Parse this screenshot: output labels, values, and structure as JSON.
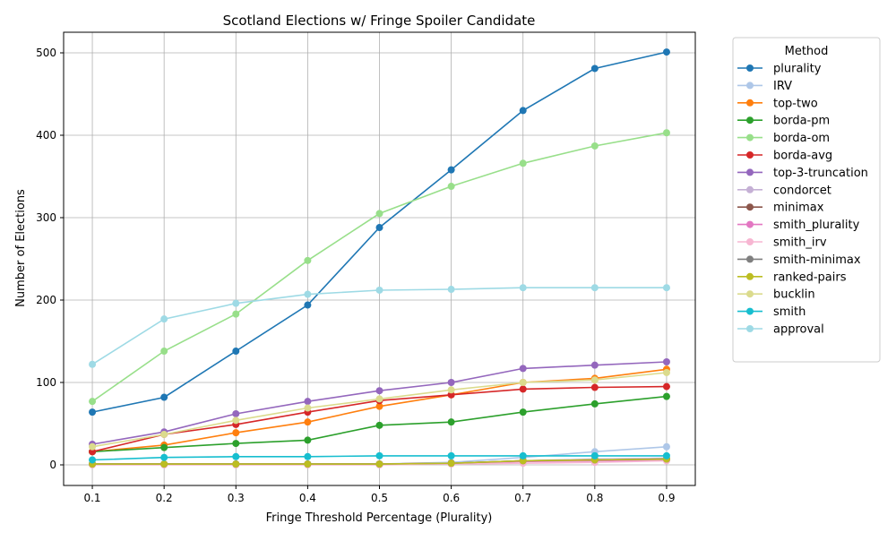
{
  "chart_data": {
    "type": "line",
    "title": "Scotland Elections w/ Fringe Spoiler Candidate",
    "xlabel": "Fringe Threshold Percentage (Plurality)",
    "ylabel": "Number of Elections",
    "x": [
      0.1,
      0.2,
      0.3,
      0.4,
      0.5,
      0.6,
      0.7,
      0.8,
      0.9
    ],
    "x_tick_labels": [
      "0.1",
      "0.2",
      "0.3",
      "0.4",
      "0.5",
      "0.6",
      "0.7",
      "0.8",
      "0.9"
    ],
    "xlim": [
      0.06,
      0.94
    ],
    "ylim": [
      -25,
      525
    ],
    "y_ticks": [
      0,
      100,
      200,
      300,
      400,
      500
    ],
    "y_tick_labels": [
      "0",
      "100",
      "200",
      "300",
      "400",
      "500"
    ],
    "grid": true,
    "legend_title": "Method",
    "legend_position": "outside-right-top",
    "series": [
      {
        "name": "plurality",
        "color": "#1f77b4",
        "values": [
          64,
          82,
          138,
          194,
          288,
          358,
          430,
          481,
          501
        ]
      },
      {
        "name": "IRV",
        "color": "#aec7e8",
        "values": [
          1,
          1,
          1,
          1,
          1,
          3,
          9,
          16,
          22
        ]
      },
      {
        "name": "top-two",
        "color": "#ff7f0e",
        "values": [
          16,
          24,
          39,
          52,
          71,
          85,
          100,
          105,
          116
        ]
      },
      {
        "name": "borda-pm",
        "color": "#2ca02c",
        "values": [
          16,
          21,
          26,
          30,
          48,
          52,
          64,
          74,
          83
        ]
      },
      {
        "name": "borda-om",
        "color": "#98df8a",
        "values": [
          77,
          138,
          183,
          248,
          305,
          338,
          366,
          387,
          403
        ]
      },
      {
        "name": "borda-avg",
        "color": "#d62728",
        "values": [
          16,
          37,
          49,
          64,
          78,
          85,
          92,
          94,
          95
        ]
      },
      {
        "name": "top-3-truncation",
        "color": "#9467bd",
        "values": [
          25,
          40,
          62,
          77,
          90,
          100,
          117,
          121,
          125
        ]
      },
      {
        "name": "condorcet",
        "color": "#c5b0d5",
        "values": [
          1,
          1,
          1,
          1,
          1,
          2,
          5,
          7,
          8
        ]
      },
      {
        "name": "minimax",
        "color": "#8c564b",
        "values": [
          1,
          1,
          1,
          1,
          1,
          2,
          5,
          6,
          7
        ]
      },
      {
        "name": "smith_plurality",
        "color": "#e377c2",
        "values": [
          1,
          1,
          1,
          1,
          1,
          2,
          4,
          5,
          6
        ]
      },
      {
        "name": "smith_irv",
        "color": "#f7b6d2",
        "values": [
          0,
          0,
          0,
          0,
          0,
          1,
          2,
          3,
          5
        ]
      },
      {
        "name": "smith-minimax",
        "color": "#7f7f7f",
        "values": [
          1,
          1,
          1,
          1,
          1,
          2,
          5,
          6,
          7
        ]
      },
      {
        "name": "ranked-pairs",
        "color": "#bcbd22",
        "values": [
          1,
          1,
          1,
          1,
          1,
          2,
          5,
          6,
          7
        ]
      },
      {
        "name": "bucklin",
        "color": "#dbdb8d",
        "values": [
          22,
          37,
          54,
          69,
          80,
          91,
          100,
          103,
          112
        ]
      },
      {
        "name": "smith",
        "color": "#17becf",
        "values": [
          6,
          9,
          10,
          10,
          11,
          11,
          11,
          11,
          11
        ]
      },
      {
        "name": "approval",
        "color": "#9edae5",
        "values": [
          122,
          177,
          196,
          207,
          212,
          213,
          215,
          215,
          215
        ]
      }
    ]
  }
}
